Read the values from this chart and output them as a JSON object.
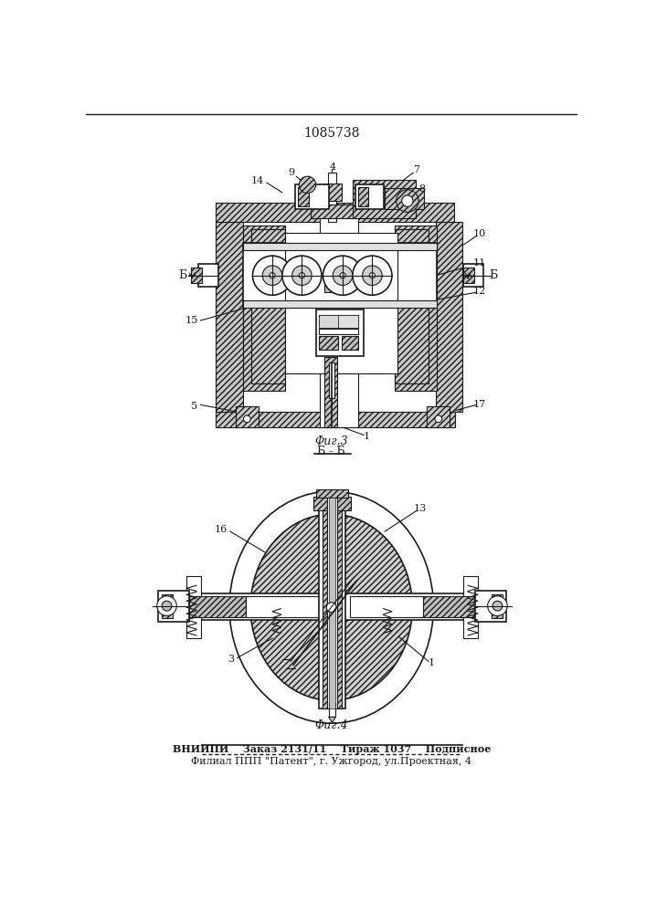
{
  "title": "1085738",
  "fig3_label": "Φиг.3",
  "fig4_label": "Φиг.4",
  "section_label": "Б - Б",
  "footer_line1": "ВНИИПИ    Заказ 2131/11    Тираж 1037    Подписное",
  "footer_line2": "Филиал ППП \"Патент\", г. Ужгород, ул.Проектная, 4",
  "bg_color": "#ffffff",
  "line_color": "#1a1a1a",
  "hatch_gray": "#b8b8b8",
  "fill_light": "#e8e8e8",
  "fill_mid": "#c8c8c8"
}
